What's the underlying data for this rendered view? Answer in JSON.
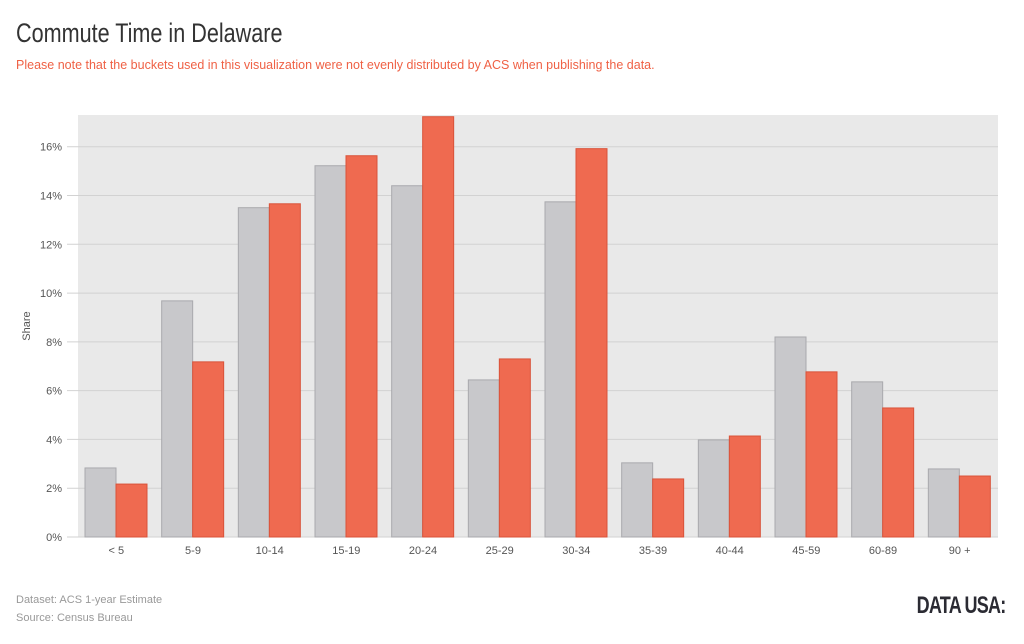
{
  "title": "Commute Time in Delaware",
  "subtitle": "Please note that the buckets used in this visualization were not evenly distributed by ACS when publishing the data.",
  "footer": {
    "dataset": "Dataset: ACS 1-year Estimate",
    "source": "Source: Census Bureau",
    "logo": "DATA USA:"
  },
  "chart_data": {
    "type": "bar",
    "title": "Commute Time in Delaware",
    "xlabel": "",
    "ylabel": "Share",
    "ylim": [
      0,
      17.3
    ],
    "yticks": [
      "0%",
      "2%",
      "4%",
      "6%",
      "8%",
      "10%",
      "12%",
      "14%",
      "16%"
    ],
    "grid": true,
    "categories": [
      "< 5",
      "5-9",
      "10-14",
      "15-19",
      "20-24",
      "25-29",
      "30-34",
      "35-39",
      "40-44",
      "45-59",
      "60-89",
      "90 +"
    ],
    "series": [
      {
        "color": "#c8c8cb",
        "values": [
          2.83,
          9.68,
          13.5,
          15.22,
          14.4,
          6.44,
          13.74,
          3.04,
          3.98,
          8.2,
          6.36,
          2.79
        ]
      },
      {
        "color": "#ef6a50",
        "values": [
          2.17,
          7.18,
          13.66,
          15.63,
          17.23,
          7.3,
          15.92,
          2.38,
          4.14,
          6.77,
          5.29,
          2.5
        ]
      }
    ]
  }
}
